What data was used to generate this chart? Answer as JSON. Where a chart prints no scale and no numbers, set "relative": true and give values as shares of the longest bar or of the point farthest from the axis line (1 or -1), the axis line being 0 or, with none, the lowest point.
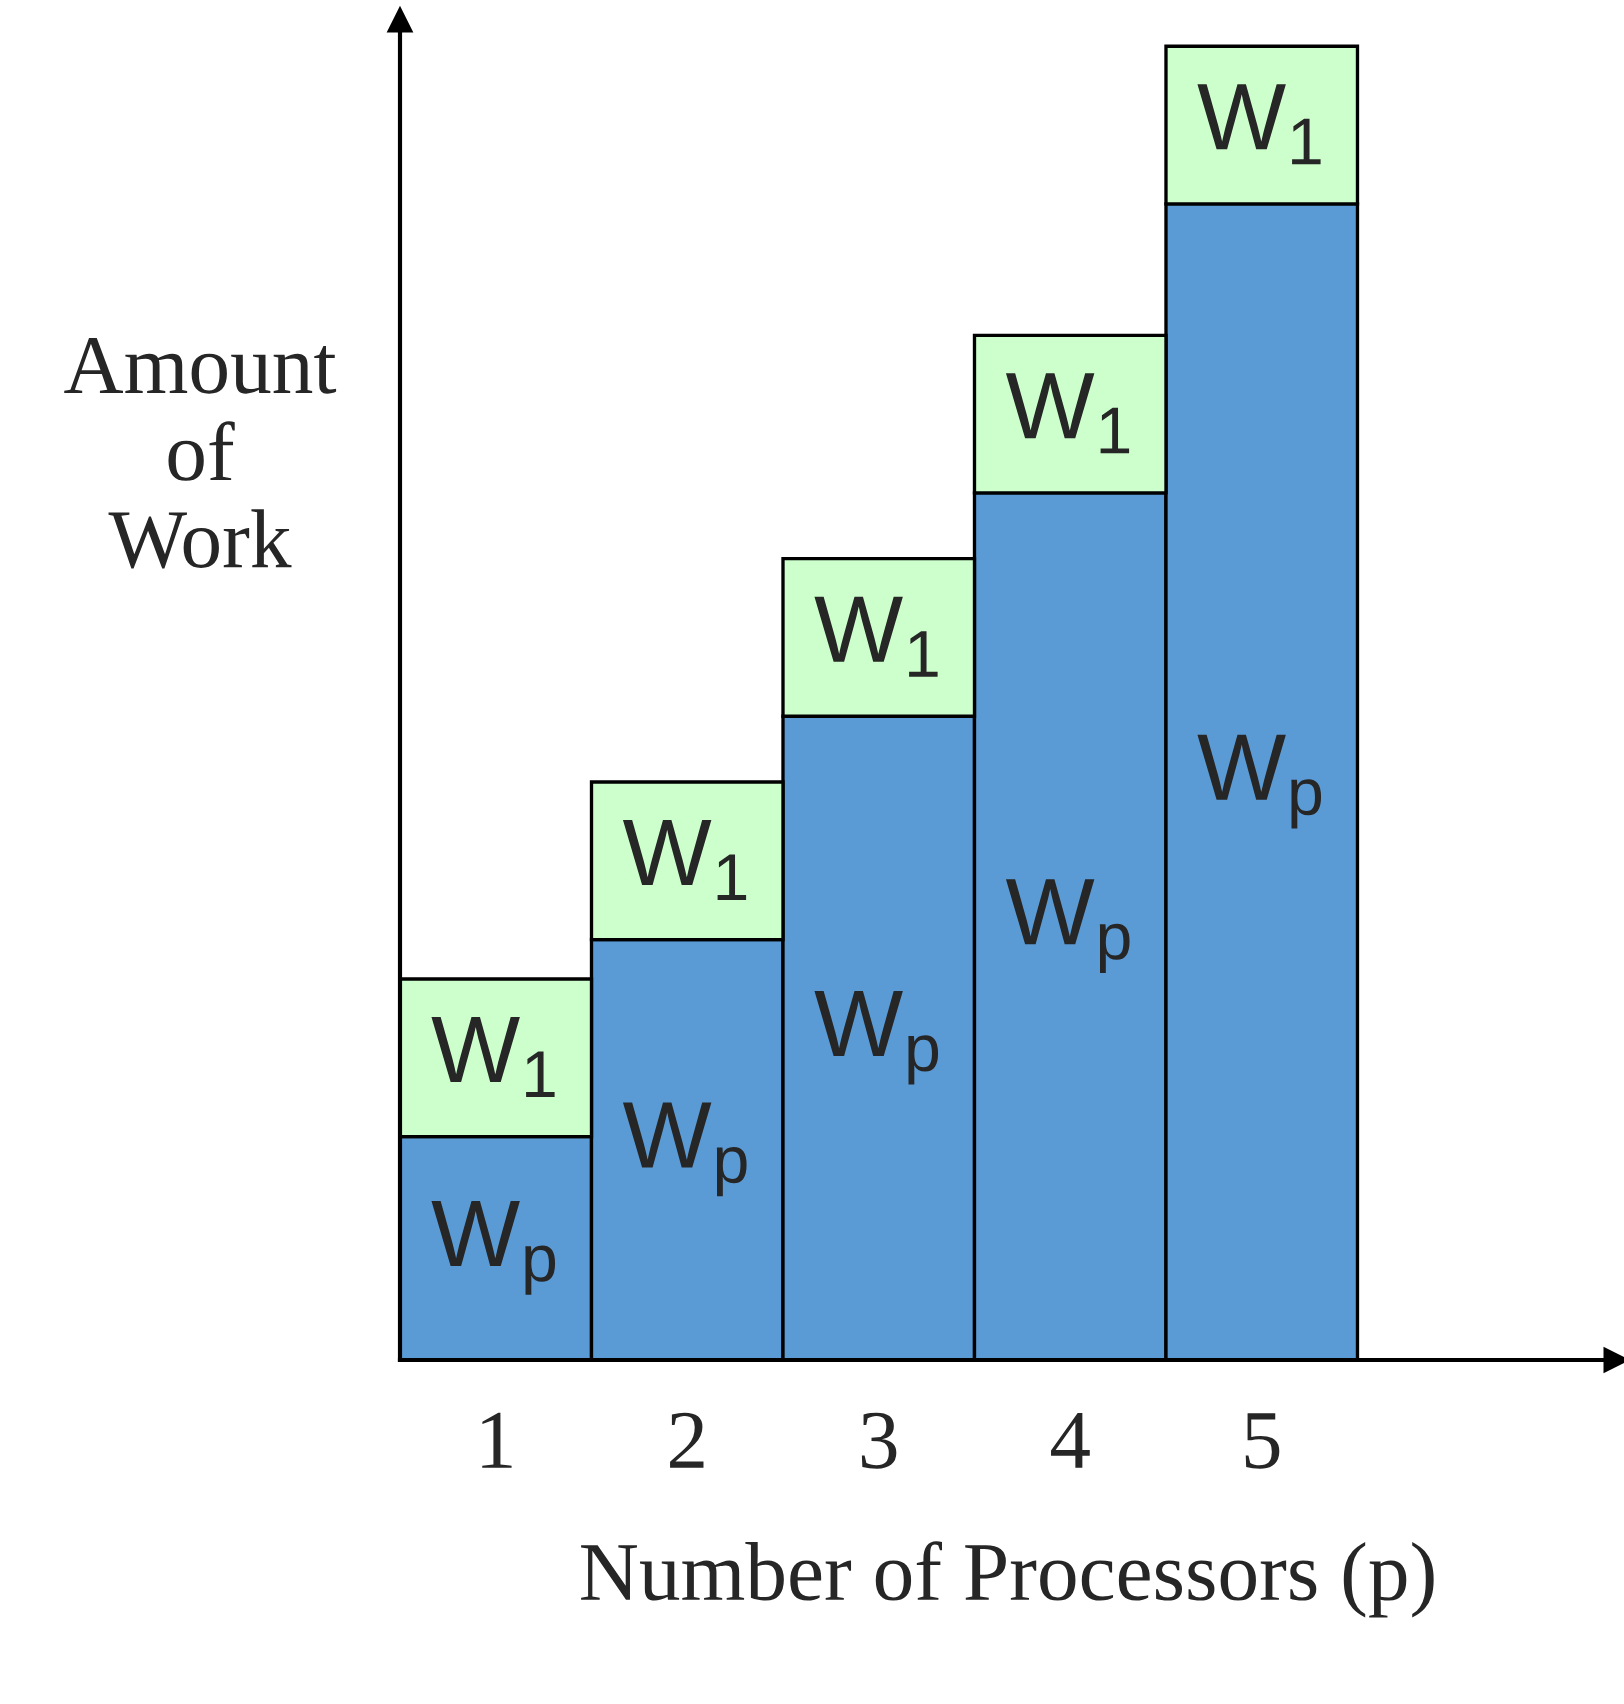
{
  "chart_data": {
    "type": "bar",
    "relative": true,
    "stacked": true,
    "xlabel": "Number of Processors (p)",
    "ylabel": "Amount\nof\nWork",
    "categories": [
      "1",
      "2",
      "3",
      "4",
      "5"
    ],
    "series": [
      {
        "name": "W$_{p}$",
        "color": "#5b9bd5",
        "values": [
          0.17,
          0.32,
          0.49,
          0.66,
          0.88
        ]
      },
      {
        "name": "W$_{1}$",
        "color": "#ccffcc",
        "values": [
          0.12,
          0.12,
          0.12,
          0.12,
          0.12
        ]
      }
    ],
    "grid": false,
    "legend": false
  }
}
